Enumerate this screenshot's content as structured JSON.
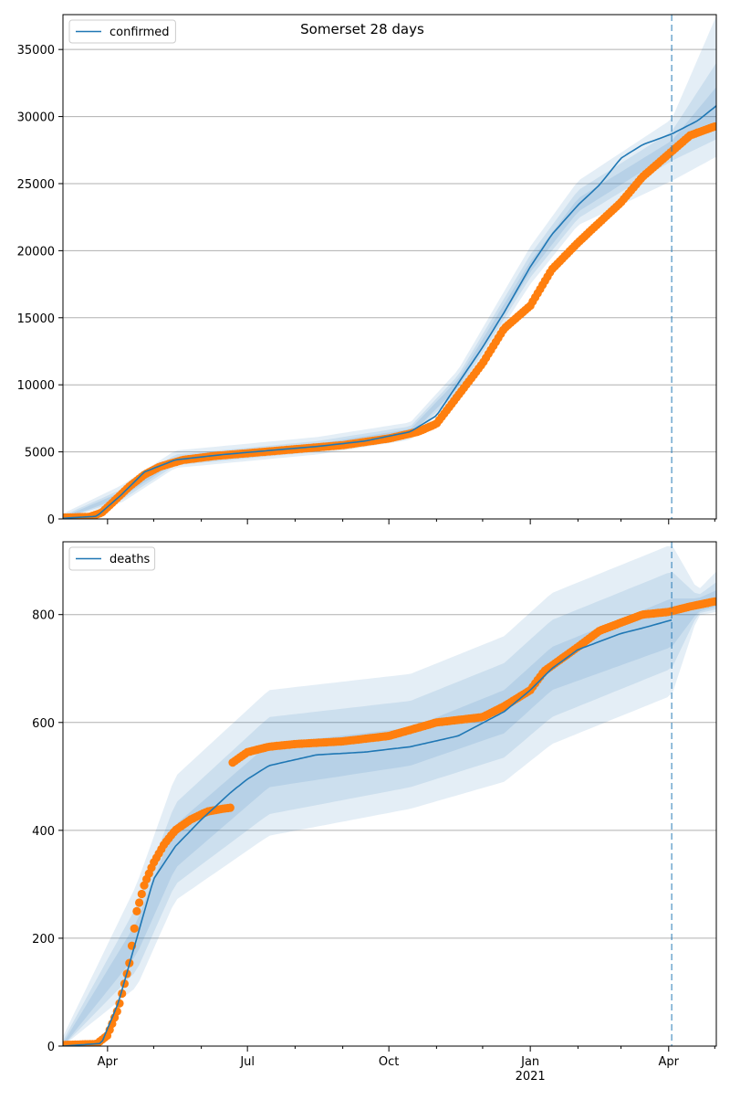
{
  "figure": {
    "title": "Somerset 28 days"
  },
  "colors": {
    "model": "#1f77b4",
    "observed": "#ff7f0e",
    "band": "#1f77b4",
    "grid": "#b0b0b0"
  },
  "x_axis": {
    "ticks": [
      {
        "date": "2020-04-01",
        "label": "Apr"
      },
      {
        "date": "2020-07-01",
        "label": "Jul"
      },
      {
        "date": "2020-10-01",
        "label": "Oct"
      },
      {
        "date": "2021-01-01",
        "label": "Jan",
        "sublabel": "2021"
      },
      {
        "date": "2021-04-01",
        "label": "Apr"
      }
    ],
    "minor_ticks": [
      "2020-05-01",
      "2020-06-01",
      "2020-08-01",
      "2020-09-01",
      "2020-11-01",
      "2020-12-01",
      "2021-02-01",
      "2021-03-01",
      "2021-05-01"
    ]
  },
  "chart_data": [
    {
      "type": "line",
      "panel": "confirmed",
      "legend": [
        "confirmed"
      ],
      "legend_position": "upper-left",
      "title": "Somerset 28 days",
      "xlim": [
        "2020-03-03",
        "2021-05-02"
      ],
      "ylim": [
        0,
        37600
      ],
      "yticks": [
        0,
        5000,
        10000,
        15000,
        20000,
        25000,
        30000,
        35000
      ],
      "grid": "horizontal",
      "forecast_start": "2021-04-03",
      "model": {
        "name": "confirmed",
        "x": [
          "2020-03-03",
          "2020-03-25",
          "2020-04-10",
          "2020-04-25",
          "2020-05-15",
          "2020-06-15",
          "2020-07-15",
          "2020-08-15",
          "2020-09-15",
          "2020-10-15",
          "2020-11-01",
          "2020-11-15",
          "2020-12-01",
          "2020-12-15",
          "2021-01-01",
          "2021-01-15",
          "2021-02-01",
          "2021-02-15",
          "2021-03-01",
          "2021-03-15",
          "2021-04-03",
          "2021-04-20",
          "2021-05-02"
        ],
        "y": [
          50,
          200,
          1800,
          3500,
          4400,
          4800,
          5100,
          5400,
          5800,
          6500,
          7700,
          10100,
          12800,
          15400,
          18800,
          21200,
          23400,
          24900,
          26900,
          27900,
          28700,
          29700,
          30800
        ]
      },
      "bands": [
        {
          "level": "inner",
          "x": [
            "2020-03-03",
            "2020-04-10",
            "2020-05-15",
            "2020-08-15",
            "2020-10-15",
            "2020-11-15",
            "2021-01-01",
            "2021-02-01",
            "2021-04-03",
            "2021-05-02"
          ],
          "low": [
            0,
            1600,
            4200,
            5200,
            6300,
            9800,
            18400,
            22900,
            27300,
            29500
          ],
          "high": [
            150,
            2000,
            4600,
            5600,
            6700,
            10400,
            19200,
            23900,
            28200,
            32200
          ]
        },
        {
          "level": "middle",
          "x": [
            "2020-03-03",
            "2020-04-10",
            "2020-05-15",
            "2020-08-15",
            "2020-10-15",
            "2020-11-15",
            "2021-01-01",
            "2021-02-01",
            "2021-04-03",
            "2021-05-02"
          ],
          "low": [
            0,
            1400,
            4000,
            5000,
            6100,
            9500,
            18000,
            22400,
            26700,
            28300
          ],
          "high": [
            250,
            2200,
            4800,
            5800,
            6900,
            10700,
            19700,
            24500,
            28900,
            34000
          ]
        },
        {
          "level": "outer",
          "x": [
            "2020-03-03",
            "2020-04-10",
            "2020-05-15",
            "2020-08-15",
            "2020-10-15",
            "2020-11-15",
            "2021-01-01",
            "2021-02-01",
            "2021-04-03",
            "2021-05-02"
          ],
          "low": [
            0,
            1200,
            3800,
            4800,
            5900,
            9200,
            17500,
            21900,
            25200,
            27000
          ],
          "high": [
            400,
            2500,
            5100,
            6100,
            7200,
            11100,
            20300,
            25200,
            29800,
            37500
          ]
        }
      ],
      "observed": {
        "name": "observed",
        "x": [
          "2020-03-03",
          "2020-03-20",
          "2020-03-28",
          "2020-04-05",
          "2020-04-15",
          "2020-04-25",
          "2020-05-05",
          "2020-05-20",
          "2020-06-10",
          "2020-07-01",
          "2020-08-01",
          "2020-09-01",
          "2020-10-01",
          "2020-10-20",
          "2020-11-01",
          "2020-11-15",
          "2020-12-01",
          "2020-12-15",
          "2021-01-01",
          "2021-01-15",
          "2021-02-01",
          "2021-02-15",
          "2021-03-01",
          "2021-03-15",
          "2021-04-01",
          "2021-04-15",
          "2021-05-02"
        ],
        "y": [
          100,
          150,
          450,
          1300,
          2400,
          3300,
          3900,
          4400,
          4700,
          4900,
          5200,
          5500,
          6000,
          6500,
          7100,
          9200,
          11600,
          14200,
          15900,
          18600,
          20600,
          22100,
          23600,
          25500,
          27200,
          28600,
          29300
        ]
      }
    },
    {
      "type": "line",
      "panel": "deaths",
      "legend": [
        "deaths"
      ],
      "legend_position": "upper-left",
      "xlim": [
        "2020-03-03",
        "2021-05-02"
      ],
      "ylim": [
        0,
        935
      ],
      "yticks": [
        0,
        200,
        400,
        600,
        800
      ],
      "grid": "horizontal",
      "forecast_start": "2021-04-03",
      "model": {
        "name": "deaths",
        "x": [
          "2020-03-03",
          "2020-03-28",
          "2020-04-08",
          "2020-04-20",
          "2020-05-01",
          "2020-05-15",
          "2020-06-01",
          "2020-06-20",
          "2020-07-01",
          "2020-07-15",
          "2020-08-15",
          "2020-09-15",
          "2020-10-15",
          "2020-11-15",
          "2020-12-15",
          "2021-01-01",
          "2021-01-15",
          "2021-02-01",
          "2021-02-15",
          "2021-03-01",
          "2021-03-15",
          "2021-04-03"
        ],
        "y": [
          0,
          5,
          80,
          200,
          310,
          370,
          420,
          470,
          495,
          520,
          540,
          545,
          555,
          575,
          620,
          660,
          700,
          735,
          750,
          765,
          775,
          790
        ]
      },
      "bands": [
        {
          "level": "inner",
          "x": [
            "2020-03-03",
            "2020-04-20",
            "2020-05-15",
            "2020-07-15",
            "2020-10-15",
            "2020-12-15",
            "2021-01-15",
            "2021-04-03",
            "2021-04-20",
            "2021-05-02"
          ],
          "low": [
            0,
            170,
            330,
            480,
            520,
            580,
            660,
            740,
            805,
            815
          ],
          "high": [
            5,
            230,
            410,
            560,
            590,
            660,
            740,
            830,
            830,
            845
          ]
        },
        {
          "level": "middle",
          "x": [
            "2020-03-03",
            "2020-04-20",
            "2020-05-15",
            "2020-07-15",
            "2020-10-15",
            "2020-12-15",
            "2021-01-15",
            "2021-04-03",
            "2021-04-20",
            "2021-05-02"
          ],
          "low": [
            0,
            140,
            300,
            430,
            480,
            535,
            610,
            700,
            802,
            810
          ],
          "high": [
            10,
            260,
            450,
            610,
            640,
            710,
            790,
            880,
            835,
            860
          ]
        },
        {
          "level": "outer",
          "x": [
            "2020-03-03",
            "2020-04-20",
            "2020-05-15",
            "2020-07-15",
            "2020-10-15",
            "2020-12-15",
            "2021-01-15",
            "2021-04-03",
            "2021-04-20",
            "2021-05-02"
          ],
          "low": [
            0,
            110,
            270,
            390,
            440,
            490,
            560,
            650,
            798,
            805
          ],
          "high": [
            18,
            300,
            500,
            660,
            690,
            760,
            840,
            930,
            845,
            880
          ]
        }
      ],
      "observed": {
        "name": "observed",
        "x": [
          "2020-03-03",
          "2020-03-25",
          "2020-04-01",
          "2020-04-08",
          "2020-04-15",
          "2020-04-20",
          "2020-04-25",
          "2020-05-01",
          "2020-05-08",
          "2020-05-15",
          "2020-05-25",
          "2020-06-05",
          "2020-06-15",
          "2020-06-20",
          "2020-06-21",
          "2020-07-01",
          "2020-07-15",
          "2020-08-01",
          "2020-09-01",
          "2020-10-01",
          "2020-11-01",
          "2020-12-01",
          "2020-12-15",
          "2021-01-01",
          "2021-01-10",
          "2021-02-01",
          "2021-02-15",
          "2021-03-01",
          "2021-03-15",
          "2021-04-01",
          "2021-04-15",
          "2021-05-02"
        ],
        "y": [
          2,
          4,
          20,
          70,
          150,
          250,
          300,
          340,
          375,
          400,
          420,
          435,
          440,
          442,
          525,
          545,
          555,
          560,
          565,
          575,
          600,
          610,
          630,
          660,
          695,
          740,
          770,
          785,
          800,
          805,
          815,
          825
        ]
      }
    }
  ]
}
